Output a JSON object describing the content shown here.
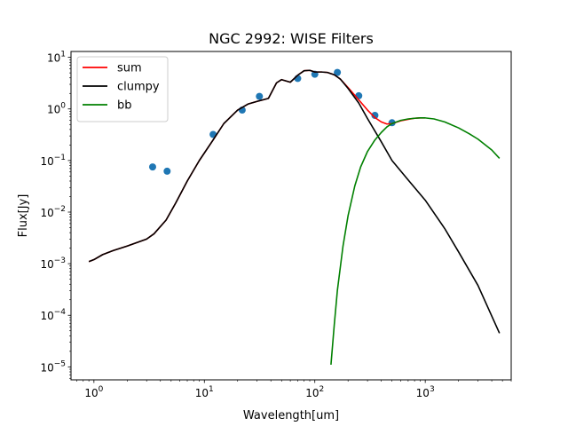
{
  "chart_data": {
    "type": "line",
    "title": "NGC 2992: WISE Filters",
    "xlabel": "Wavelength[um]",
    "ylabel": "Flux[Jy]",
    "xscale": "log",
    "yscale": "log",
    "xlim": [
      0.62,
      6000
    ],
    "ylim": [
      5.6e-06,
      13
    ],
    "xticks": [
      {
        "value": 1,
        "base": "10",
        "exp": "0"
      },
      {
        "value": 10,
        "base": "10",
        "exp": "1"
      },
      {
        "value": 100,
        "base": "10",
        "exp": "2"
      },
      {
        "value": 1000,
        "base": "10",
        "exp": "3"
      }
    ],
    "yticks": [
      {
        "value": 1e-05,
        "base": "10",
        "exp": "−5"
      },
      {
        "value": 0.0001,
        "base": "10",
        "exp": "−4"
      },
      {
        "value": 0.001,
        "base": "10",
        "exp": "−3"
      },
      {
        "value": 0.01,
        "base": "10",
        "exp": "−2"
      },
      {
        "value": 0.1,
        "base": "10",
        "exp": "−1"
      },
      {
        "value": 1,
        "base": "10",
        "exp": "0"
      },
      {
        "value": 10,
        "base": "10",
        "exp": "1"
      }
    ],
    "legend_position": "top-left",
    "grid": false,
    "series": [
      {
        "name": "sum",
        "kind": "line",
        "color": "#ff0000",
        "x": [
          0.9,
          1.0,
          1.2,
          1.5,
          2.0,
          3.0,
          3.5,
          4.5,
          5.5,
          7.0,
          9.0,
          12,
          15,
          20,
          25,
          30,
          38,
          45,
          50,
          60,
          70,
          80,
          90,
          100,
          115,
          130,
          150,
          170,
          200,
          250,
          300,
          350,
          400,
          450,
          500,
          600,
          700,
          800,
          900,
          1000
        ],
        "y": [
          0.0011,
          0.0012,
          0.0015,
          0.0018,
          0.0022,
          0.003,
          0.0038,
          0.007,
          0.015,
          0.04,
          0.1,
          0.25,
          0.52,
          0.95,
          1.25,
          1.4,
          1.6,
          3.2,
          3.7,
          3.3,
          4.5,
          5.5,
          5.6,
          5.2,
          5.2,
          5.1,
          4.6,
          3.8,
          2.6,
          1.5,
          0.95,
          0.68,
          0.56,
          0.51,
          0.52,
          0.59,
          0.63,
          0.66,
          0.67,
          0.67
        ]
      },
      {
        "name": "clumpy",
        "kind": "line",
        "color": "#000000",
        "x": [
          0.9,
          1.0,
          1.2,
          1.5,
          2.0,
          3.0,
          3.5,
          4.5,
          5.5,
          7.0,
          9.0,
          12,
          15,
          20,
          25,
          30,
          38,
          45,
          50,
          60,
          70,
          80,
          90,
          100,
          115,
          130,
          150,
          170,
          200,
          250,
          300,
          400,
          500,
          700,
          1000,
          1500,
          2000,
          3000,
          4700
        ],
        "y": [
          0.0011,
          0.0012,
          0.0015,
          0.0018,
          0.0022,
          0.003,
          0.0038,
          0.007,
          0.015,
          0.04,
          0.1,
          0.25,
          0.52,
          0.95,
          1.25,
          1.4,
          1.6,
          3.2,
          3.7,
          3.3,
          4.5,
          5.5,
          5.6,
          5.2,
          5.2,
          5.1,
          4.6,
          3.8,
          2.5,
          1.3,
          0.65,
          0.23,
          0.1,
          0.042,
          0.017,
          0.0048,
          0.0017,
          0.00038,
          4.5e-05
        ]
      },
      {
        "name": "bb",
        "kind": "line",
        "color": "#008000",
        "x": [
          140,
          150,
          160,
          180,
          200,
          230,
          260,
          300,
          350,
          400,
          450,
          500,
          600,
          700,
          800,
          900,
          1000,
          1200,
          1500,
          2000,
          2500,
          3000,
          4000,
          4700
        ],
        "y": [
          1.1e-05,
          6.5e-05,
          0.0003,
          0.0022,
          0.0085,
          0.032,
          0.075,
          0.15,
          0.25,
          0.35,
          0.45,
          0.52,
          0.6,
          0.64,
          0.66,
          0.67,
          0.67,
          0.64,
          0.56,
          0.43,
          0.33,
          0.26,
          0.16,
          0.11
        ]
      },
      {
        "name": "",
        "kind": "scatter",
        "color": "#1f77b4",
        "x": [
          3.4,
          4.6,
          12,
          22,
          31.5,
          70,
          100,
          160,
          250,
          350,
          500
        ],
        "y": [
          0.075,
          0.062,
          0.32,
          0.95,
          1.75,
          3.9,
          4.7,
          5.1,
          1.8,
          0.75,
          0.54
        ]
      }
    ]
  }
}
